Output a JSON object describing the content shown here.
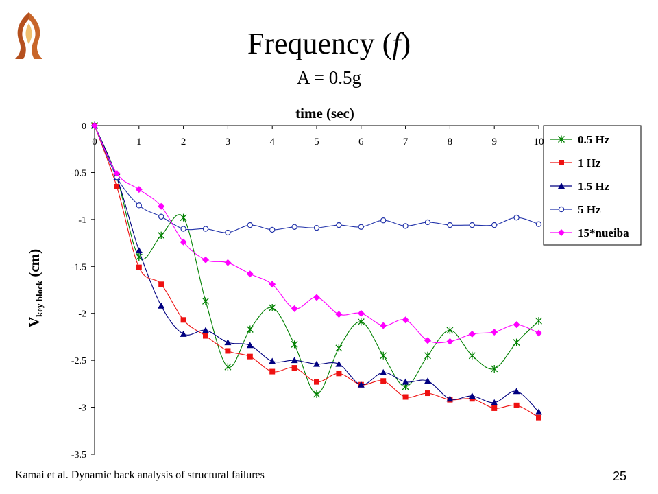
{
  "slide": {
    "title_prefix": "Frequency (",
    "title_symbol": "f",
    "title_suffix": ")",
    "subtitle": "A = 0.5g",
    "footer": "Kamai et al. Dynamic back analysis of structural failures",
    "page_number": "25",
    "logo_icon": "university-flame-logo-icon",
    "logo_color": "#b5501e"
  },
  "chart_data": {
    "type": "line",
    "title": "",
    "xlabel": "time (sec)",
    "ylabel_main": "V",
    "ylabel_sub": "key block",
    "ylabel_unit": "(cm)",
    "xlim": [
      0,
      10
    ],
    "ylim": [
      -3.5,
      0
    ],
    "x_ticks": [
      "0",
      "1",
      "2",
      "3",
      "4",
      "5",
      "6",
      "7",
      "8",
      "9",
      "10"
    ],
    "y_ticks": [
      "0",
      "-0.5",
      "-1",
      "-1.5",
      "-2",
      "-2.5",
      "-3",
      "-3.5"
    ],
    "x_axis_position": "top",
    "grid": false,
    "legend_position": "right",
    "series": [
      {
        "name": "0.5 Hz",
        "color": "#008000",
        "marker": "star",
        "x": [
          0,
          0.5,
          1,
          1.5,
          2,
          2.5,
          3,
          3.5,
          4,
          4.5,
          5,
          5.5,
          6,
          6.5,
          7,
          7.5,
          8,
          8.5,
          9,
          9.5,
          10
        ],
        "y": [
          0,
          -0.55,
          -1.4,
          -1.17,
          -0.98,
          -1.87,
          -2.57,
          -2.17,
          -1.94,
          -2.33,
          -2.86,
          -2.37,
          -2.09,
          -2.45,
          -2.78,
          -2.45,
          -2.18,
          -2.45,
          -2.59,
          -2.31,
          -2.08
        ]
      },
      {
        "name": "1 Hz",
        "color": "#ee1111",
        "marker": "square",
        "x": [
          0,
          0.5,
          1,
          1.5,
          2,
          2.5,
          3,
          3.5,
          4,
          4.5,
          5,
          5.5,
          6,
          6.5,
          7,
          7.5,
          8,
          8.5,
          9,
          9.5,
          10
        ],
        "y": [
          0,
          -0.65,
          -1.51,
          -1.69,
          -2.07,
          -2.24,
          -2.4,
          -2.46,
          -2.62,
          -2.58,
          -2.73,
          -2.64,
          -2.76,
          -2.72,
          -2.89,
          -2.85,
          -2.92,
          -2.91,
          -3.01,
          -2.98,
          -3.11
        ]
      },
      {
        "name": "1.5 Hz",
        "color": "#000080",
        "marker": "triangle",
        "x": [
          0,
          0.5,
          1,
          1.5,
          2,
          2.5,
          3,
          3.5,
          4,
          4.5,
          5,
          5.5,
          6,
          6.5,
          7,
          7.5,
          8,
          8.5,
          9,
          9.5,
          10
        ],
        "y": [
          0,
          -0.55,
          -1.33,
          -1.92,
          -2.22,
          -2.18,
          -2.31,
          -2.34,
          -2.51,
          -2.5,
          -2.54,
          -2.54,
          -2.76,
          -2.63,
          -2.73,
          -2.72,
          -2.91,
          -2.88,
          -2.95,
          -2.83,
          -3.05
        ]
      },
      {
        "name": "5 Hz",
        "color": "#2233aa",
        "marker": "circle",
        "x": [
          0,
          0.5,
          1,
          1.5,
          2,
          2.5,
          3,
          3.5,
          4,
          4.5,
          5,
          5.5,
          6,
          6.5,
          7,
          7.5,
          8,
          8.5,
          9,
          9.5,
          10
        ],
        "y": [
          0,
          -0.55,
          -0.85,
          -0.97,
          -1.1,
          -1.1,
          -1.14,
          -1.06,
          -1.11,
          -1.08,
          -1.09,
          -1.06,
          -1.08,
          -1.01,
          -1.07,
          -1.03,
          -1.06,
          -1.06,
          -1.06,
          -0.98,
          -1.05
        ]
      },
      {
        "name": "15*nueiba",
        "color": "#ff00ff",
        "marker": "diamond",
        "x": [
          0,
          0.5,
          1,
          1.5,
          2,
          2.5,
          3,
          3.5,
          4,
          4.5,
          5,
          5.5,
          6,
          6.5,
          7,
          7.5,
          8,
          8.5,
          9,
          9.5,
          10
        ],
        "y": [
          0,
          -0.51,
          -0.68,
          -0.86,
          -1.24,
          -1.43,
          -1.46,
          -1.58,
          -1.69,
          -1.95,
          -1.83,
          -2.01,
          -2.0,
          -2.13,
          -2.07,
          -2.29,
          -2.3,
          -2.22,
          -2.2,
          -2.12,
          -2.21
        ]
      }
    ]
  }
}
